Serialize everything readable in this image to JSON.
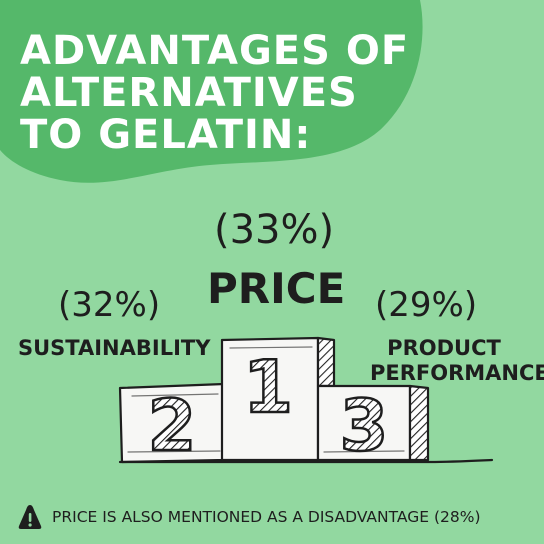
{
  "headline": {
    "line1": "ADVANTAGES OF",
    "line2": "ALTERNATIVES",
    "line3": "TO GELATIN:"
  },
  "podium": {
    "first": {
      "rank": "1",
      "percent": "(33%)",
      "label": "PRICE"
    },
    "second": {
      "rank": "2",
      "percent": "(32%)",
      "label": "SUSTAINABILITY"
    },
    "third": {
      "rank": "3",
      "percent": "(29%)",
      "label_line1": "PRODUCT",
      "label_line2": "PERFORMANCE"
    }
  },
  "footer": {
    "icon": "warning-icon",
    "note": "PRICE IS ALSO MENTIONED AS A DISADVANTAGE (28%)"
  },
  "colors": {
    "background": "#92d8a0",
    "blob": "#55b86a",
    "text": "#1e1e1e",
    "headline": "#ffffff"
  }
}
